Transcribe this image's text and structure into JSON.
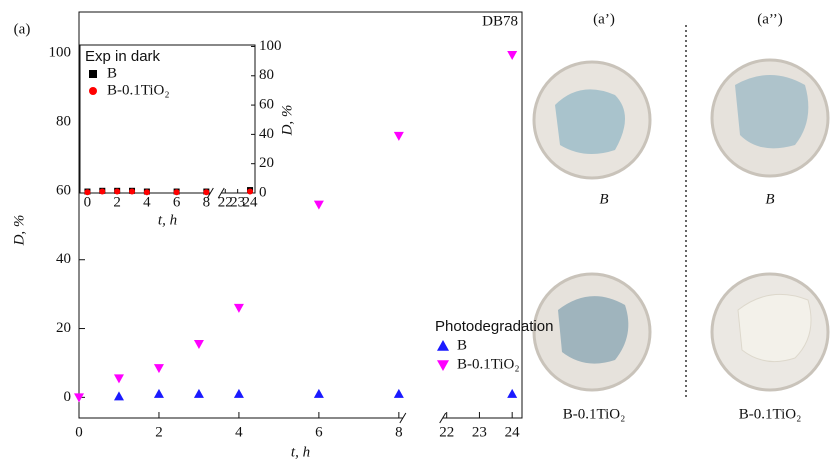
{
  "chart_data": [
    {
      "type": "scatter",
      "panel_label": "(a)",
      "title": "DB78",
      "x_label": "t, h",
      "y_label": "D, %",
      "xlim": [
        0,
        24.3
      ],
      "ylim": [
        -6,
        112
      ],
      "x_break": [
        8,
        22
      ],
      "xticks": [
        0,
        2,
        4,
        6,
        8,
        22,
        23,
        24
      ],
      "yticks": [
        0,
        20,
        40,
        60,
        80,
        100
      ],
      "legend_title": "Photodegradation",
      "series": [
        {
          "name": "B",
          "color": "#1a1aff",
          "marker": "triangle-up",
          "x": [
            1,
            2,
            3,
            4,
            6,
            8,
            24
          ],
          "values": [
            0.3,
            1,
            1,
            1,
            1,
            1,
            1
          ]
        },
        {
          "name": "B-0.1TiO₂",
          "color": "#ff00ff",
          "marker": "triangle-down",
          "x": [
            0,
            1,
            2,
            3,
            4,
            6,
            8,
            24
          ],
          "values": [
            0,
            5.5,
            8.5,
            15.5,
            26,
            56,
            76,
            99.5
          ]
        }
      ]
    },
    {
      "type": "scatter",
      "x_label": "t, h",
      "y_label": "D, %",
      "xlim": [
        -0.5,
        24.4
      ],
      "ylim": [
        0,
        101
      ],
      "x_break": [
        8,
        22
      ],
      "xticks": [
        0,
        2,
        4,
        6,
        8,
        22,
        23,
        24
      ],
      "yticks": [
        0,
        20,
        40,
        60,
        80,
        100
      ],
      "legend_title": "Exp in dark",
      "series": [
        {
          "name": "B",
          "color": "#000000",
          "marker": "square",
          "x": [
            0,
            1,
            2,
            3,
            4,
            6,
            8,
            24
          ],
          "values": [
            1,
            1.5,
            1.5,
            1.5,
            1,
            1,
            1,
            2
          ]
        },
        {
          "name": "B-0.1TiO₂",
          "color": "#ff0000",
          "marker": "circle",
          "x": [
            0,
            1,
            2,
            3,
            4,
            6,
            8,
            24
          ],
          "values": [
            0.5,
            1,
            1,
            1,
            0.5,
            0.5,
            0.5,
            1
          ]
        }
      ]
    }
  ],
  "photos": [
    {
      "label": "(a’)",
      "captions": [
        "B",
        "B-0.1TiO₂"
      ]
    },
    {
      "label": "(a’’)",
      "captions": [
        "B",
        "B-0.1TiO₂"
      ]
    }
  ]
}
